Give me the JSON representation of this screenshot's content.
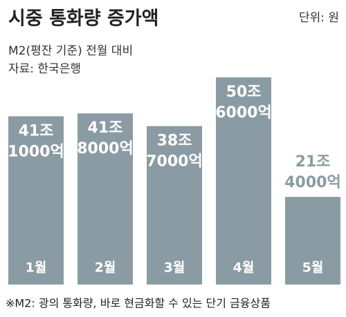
{
  "title": "시중 통화량 증가액",
  "unit": "단위: 원",
  "subtitle": "M2(평잔 기준) 전월 대비",
  "source": "자료: 한국은행",
  "footnote": "※M2: 광의 통화량, 바로 현금화할 수 있는 단기 금융상품",
  "chart_data": {
    "type": "bar",
    "categories": [
      "1월",
      "2월",
      "3월",
      "4월",
      "5월"
    ],
    "values": [
      41100000000000,
      41800000000000,
      38700000000000,
      50600000000000,
      21400000000000
    ],
    "value_labels": [
      [
        "41조",
        "1000억"
      ],
      [
        "41조",
        "8000억"
      ],
      [
        "38조",
        "7000억"
      ],
      [
        "50조",
        "6000억"
      ],
      [
        "21조",
        "4000억"
      ]
    ],
    "color": "#8a9ba3"
  }
}
